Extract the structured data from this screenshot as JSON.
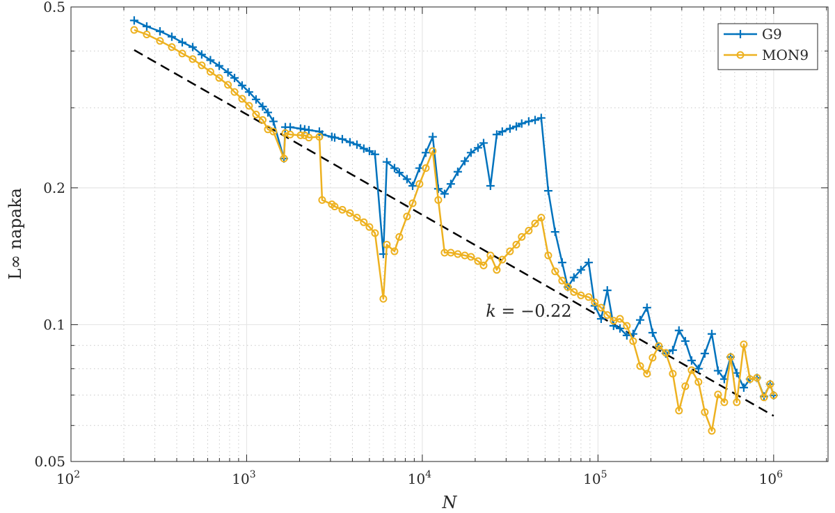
{
  "chart_data": {
    "type": "line",
    "title": "",
    "xlabel": "N",
    "ylabel": "L∞ napaka",
    "xscale": "log",
    "yscale": "log",
    "xlim": [
      100,
      2040000
    ],
    "ylim": [
      0.05,
      0.5
    ],
    "grid": true,
    "minor_grid": true,
    "legend_position": "top-right",
    "x_ticks": [
      100,
      1000,
      10000,
      100000,
      1000000
    ],
    "x_tick_labels": [
      {
        "base": "10",
        "exp": "2"
      },
      {
        "base": "10",
        "exp": "3"
      },
      {
        "base": "10",
        "exp": "4"
      },
      {
        "base": "10",
        "exp": "5"
      },
      {
        "base": "10",
        "exp": "6"
      }
    ],
    "y_ticks": [
      0.05,
      0.1,
      0.2,
      0.5
    ],
    "y_tick_labels": [
      "0.05",
      "0.1",
      "0.2",
      "0.5"
    ],
    "x": [
      229,
      270,
      321,
      375,
      430,
      493,
      555,
      622,
      698,
      783,
      853,
      942,
      1032,
      1131,
      1234,
      1321,
      1420,
      1630,
      1660,
      1770,
      2028,
      2140,
      2260,
      2594,
      2690,
      3055,
      3170,
      3505,
      3873,
      4245,
      4645,
      5000,
      5380,
      6000,
      6280,
      6945,
      7400,
      8180,
      8810,
      9640,
      10470,
      11460,
      12330,
      13390,
      14530,
      15920,
      17450,
      18930,
      20750,
      22330,
      24430,
      26530,
      28520,
      31550,
      34280,
      36810,
      40360,
      43850,
      47530,
      52120,
      57020,
      62520,
      67300,
      72950,
      79980,
      88500,
      95950,
      104200,
      113000,
      122700,
      133400,
      146000,
      158500,
      173800,
      190100,
      204600,
      221900,
      243200,
      266600,
      289100,
      314100,
      341200,
      373300,
      405500,
      444600,
      482200,
      523600,
      568900,
      616600,
      676100,
      733300,
      803500,
      881000,
      955000,
      1000000
    ],
    "series": [
      {
        "name": "G9",
        "color": "#0072BD",
        "marker": "plus",
        "values": [
          0.467,
          0.453,
          0.442,
          0.43,
          0.418,
          0.408,
          0.393,
          0.382,
          0.371,
          0.359,
          0.349,
          0.336,
          0.325,
          0.313,
          0.302,
          0.293,
          0.28,
          0.232,
          0.272,
          0.272,
          0.27,
          0.269,
          0.268,
          0.266,
          0.262,
          0.259,
          0.258,
          0.256,
          0.252,
          0.249,
          0.244,
          0.241,
          0.237,
          0.143,
          0.228,
          0.221,
          0.216,
          0.209,
          0.202,
          0.221,
          0.239,
          0.259,
          0.199,
          0.194,
          0.204,
          0.217,
          0.229,
          0.239,
          0.245,
          0.251,
          0.202,
          0.262,
          0.266,
          0.27,
          0.273,
          0.277,
          0.28,
          0.282,
          0.285,
          0.197,
          0.16,
          0.137,
          0.121,
          0.127,
          0.132,
          0.137,
          0.11,
          0.103,
          0.119,
          0.0994,
          0.0981,
          0.0947,
          0.0954,
          0.1024,
          0.109,
          0.096,
          0.0895,
          0.0864,
          0.0879,
          0.0971,
          0.092,
          0.0834,
          0.08,
          0.0864,
          0.0954,
          0.0792,
          0.0759,
          0.0849,
          0.0783,
          0.0727,
          0.0759,
          0.0764,
          0.0695,
          0.074,
          0.0699
        ]
      },
      {
        "name": "MON9",
        "color": "#EDB120",
        "marker": "circle",
        "values": [
          0.445,
          0.435,
          0.421,
          0.408,
          0.395,
          0.384,
          0.372,
          0.36,
          0.349,
          0.337,
          0.325,
          0.314,
          0.303,
          0.29,
          0.282,
          0.269,
          0.266,
          0.232,
          0.264,
          0.262,
          0.261,
          0.261,
          0.258,
          0.259,
          0.188,
          0.184,
          0.182,
          0.179,
          0.176,
          0.172,
          0.168,
          0.164,
          0.159,
          0.114,
          0.15,
          0.145,
          0.156,
          0.173,
          0.185,
          0.204,
          0.221,
          0.241,
          0.188,
          0.144,
          0.144,
          0.143,
          0.142,
          0.141,
          0.138,
          0.135,
          0.142,
          0.132,
          0.139,
          0.145,
          0.15,
          0.156,
          0.161,
          0.167,
          0.172,
          0.142,
          0.131,
          0.125,
          0.121,
          0.118,
          0.116,
          0.115,
          0.112,
          0.109,
          0.105,
          0.102,
          0.103,
          0.0994,
          0.092,
          0.0811,
          0.078,
          0.0846,
          0.0898,
          0.0867,
          0.078,
          0.0647,
          0.0732,
          0.0794,
          0.0748,
          0.0642,
          0.0584,
          0.0702,
          0.0675,
          0.0849,
          0.0675,
          0.0905,
          0.0759,
          0.0764,
          0.0692,
          0.074,
          0.0699
        ]
      }
    ],
    "fit_line": {
      "x": [
        229,
        1000000
      ],
      "y": [
        0.402,
        0.063
      ],
      "color": "#000000",
      "style": "dashed"
    },
    "annotation": {
      "prefix": "k",
      "text": " = −0.22",
      "x": 23000,
      "y": 0.107
    }
  }
}
